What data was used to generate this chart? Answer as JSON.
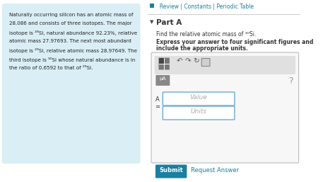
{
  "bg_color": "#ffffff",
  "left_panel_bg": "#daeef5",
  "left_panel_text_lines": [
    "Naturally occurring silicon has an atomic mass of",
    "28.086 and consists of three isotopes. The major",
    "isotope is ²⁸Si, natural abundance 92.23%, relative",
    "atomic mass 27.97693. The next most abundant",
    "isotope is ²⁹Si, relative atomic mass 28.97649. The",
    "third isotope is ³⁰Si whose natural abundance is in",
    "the ratio of 0.6592 to that of ²⁹Si."
  ],
  "top_right_text": "  Review | Constants | Periodic Table",
  "top_right_color": "#1a7fa0",
  "divider_color": "#cccccc",
  "part_a_color": "#333333",
  "question_line1": "Find the relative atomic mass of ³⁰Si.",
  "question_line2a": "Express your answer to four significant figures and",
  "question_line2b": "include the appropriate units.",
  "input_box_bg": "#ffffff",
  "input_box_border": "#5ba3c9",
  "value_placeholder": "Value",
  "units_placeholder": "Units",
  "submit_btn_color": "#1a7fa0",
  "submit_btn_text": "Submit",
  "request_answer_text": "Request Answer",
  "request_answer_color": "#1a7fa0",
  "mu_btn_text": "μA",
  "question_mark": "?"
}
